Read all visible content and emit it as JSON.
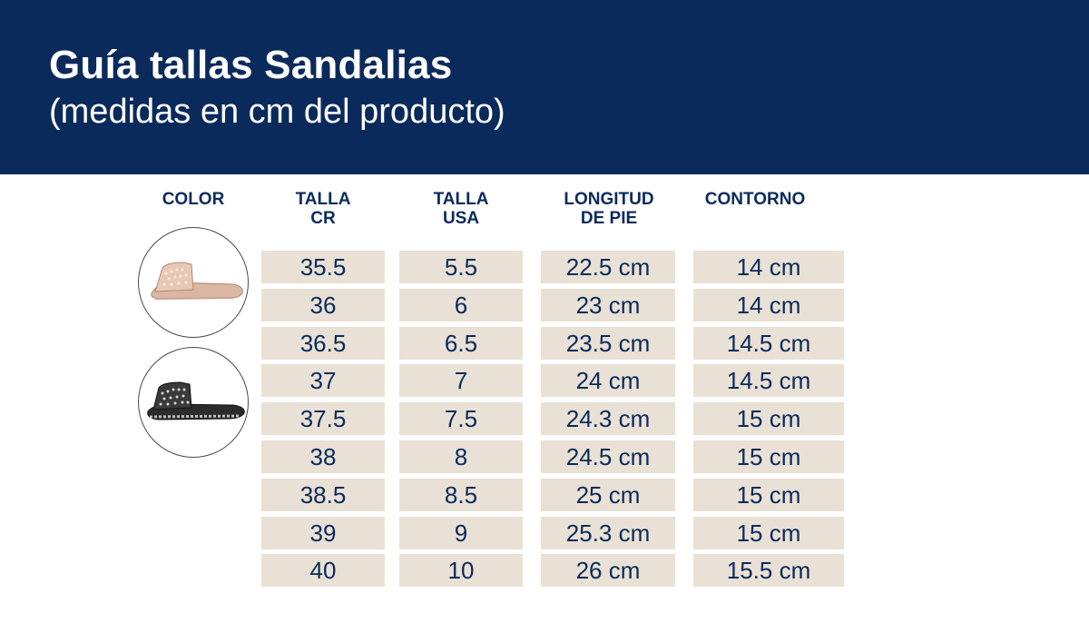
{
  "header": {
    "title": "Guía tallas Sandalias",
    "subtitle": "(medidas en cm del producto)"
  },
  "table": {
    "columns": [
      {
        "line1": "COLOR",
        "line2": ""
      },
      {
        "line1": "TALLA",
        "line2": "CR"
      },
      {
        "line1": "TALLA",
        "line2": "USA"
      },
      {
        "line1": "LONGITUD",
        "line2": "DE PIE"
      },
      {
        "line1": "CONTORNO",
        "line2": ""
      }
    ],
    "rows": [
      [
        "35.5",
        "5.5",
        "22.5 cm",
        "14 cm"
      ],
      [
        "36",
        "6",
        "23 cm",
        "14 cm"
      ],
      [
        "36.5",
        "6.5",
        "23.5 cm",
        "14.5 cm"
      ],
      [
        "37",
        "7",
        "24 cm",
        "14.5 cm"
      ],
      [
        "37.5",
        "7.5",
        "24.3 cm",
        "15 cm"
      ],
      [
        "38",
        "8",
        "24.5 cm",
        "15 cm"
      ],
      [
        "38.5",
        "8.5",
        "25 cm",
        "15 cm"
      ],
      [
        "39",
        "9",
        "25.3 cm",
        "15 cm"
      ],
      [
        "40",
        "10",
        "26 cm",
        "15.5 cm"
      ]
    ]
  },
  "colors": {
    "banner": "#0b2a5c",
    "cell_bg": "#e9e1d5",
    "text": "#0b2a5c",
    "swatch_nude": "#e8c7b4",
    "swatch_black": "#2b2b2b"
  },
  "swatches": [
    {
      "icon": "nude-sandal-icon"
    },
    {
      "icon": "black-sandal-icon"
    }
  ]
}
